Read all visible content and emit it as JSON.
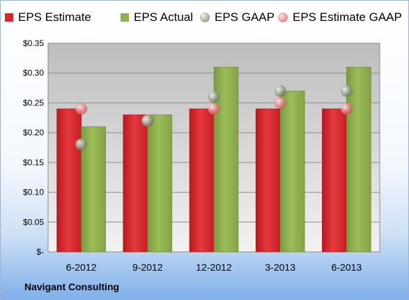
{
  "company": "Navigant Consulting",
  "chart_data": {
    "type": "bar",
    "categories": [
      "6-2012",
      "9-2012",
      "12-2012",
      "3-2013",
      "6-2013"
    ],
    "series": [
      {
        "name": "EPS Estimate",
        "kind": "bar",
        "color": "#d9262b",
        "values": [
          0.24,
          0.23,
          0.24,
          0.24,
          0.24
        ]
      },
      {
        "name": "EPS Actual",
        "kind": "bar",
        "color": "#8fb04e",
        "values": [
          0.21,
          0.23,
          0.31,
          0.27,
          0.31
        ]
      },
      {
        "name": "EPS GAAP",
        "kind": "marker",
        "color": "#9aa58e",
        "values": [
          0.18,
          0.22,
          0.26,
          0.27,
          0.27
        ]
      },
      {
        "name": "EPS Estimate GAAP",
        "kind": "marker",
        "color": "#e6868b",
        "values": [
          0.24,
          0.22,
          0.24,
          0.25,
          0.24
        ]
      }
    ],
    "ylim": [
      0,
      0.35
    ],
    "yticks": [
      0,
      0.05,
      0.1,
      0.15,
      0.2,
      0.25,
      0.3,
      0.35
    ],
    "ytick_labels": [
      "$-",
      "$0.05",
      "$0.10",
      "$0.15",
      "$0.20",
      "$0.25",
      "$0.30",
      "$0.35"
    ],
    "grid": true,
    "legend_position": "top"
  }
}
